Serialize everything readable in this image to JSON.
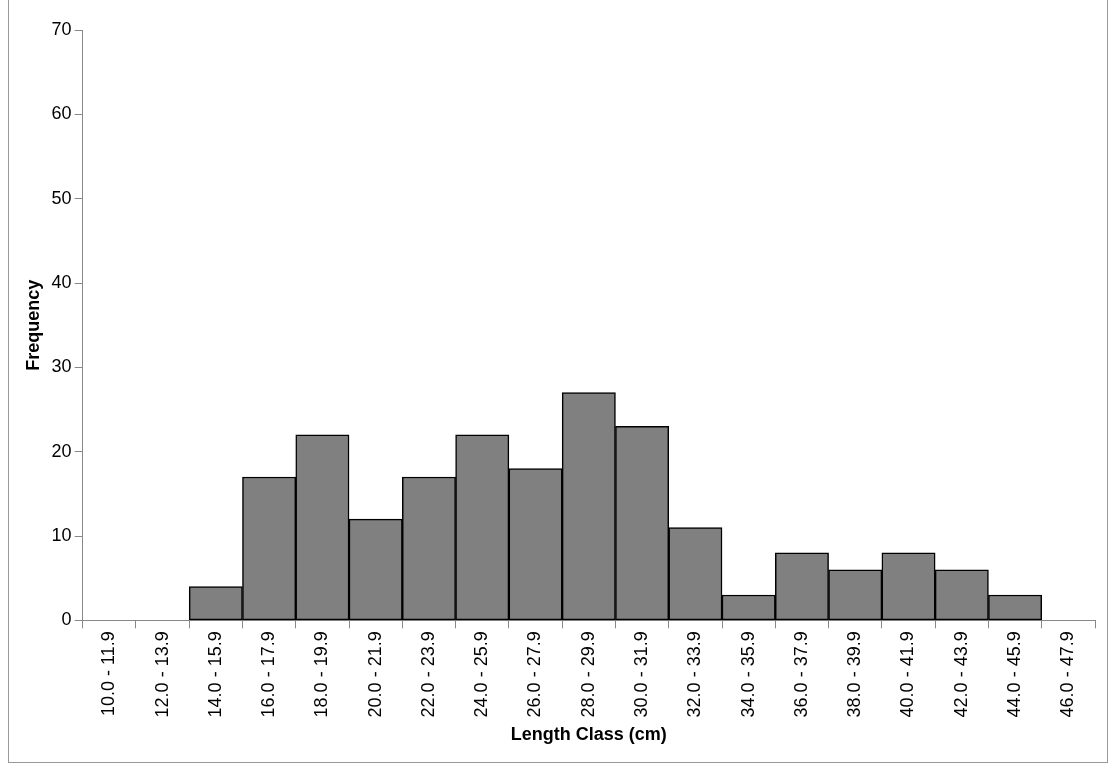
{
  "chart_data": {
    "type": "bar",
    "xlabel": "Length Class (cm)",
    "ylabel": "Frequency",
    "categories": [
      "10.0 - 11.9",
      "12.0 - 13.9",
      "14.0 - 15.9",
      "16.0 - 17.9",
      "18.0 - 19.9",
      "20.0 - 21.9",
      "22.0 - 23.9",
      "24.0 - 25.9",
      "26.0 - 27.9",
      "28.0 - 29.9",
      "30.0 - 31.9",
      "32.0 - 33.9",
      "34.0 - 35.9",
      "36.0 - 37.9",
      "38.0 - 39.9",
      "40.0 - 41.9",
      "42.0 - 43.9",
      "44.0 - 45.9",
      "46.0 - 47.9"
    ],
    "values": [
      0,
      0,
      4,
      17,
      22,
      12,
      17,
      22,
      18,
      27,
      23,
      11,
      3,
      8,
      6,
      8,
      6,
      3,
      0
    ],
    "color": "#808080",
    "ylim": [
      0,
      70
    ],
    "yticks": [
      0,
      10,
      20,
      30,
      40,
      50,
      60,
      70
    ]
  }
}
